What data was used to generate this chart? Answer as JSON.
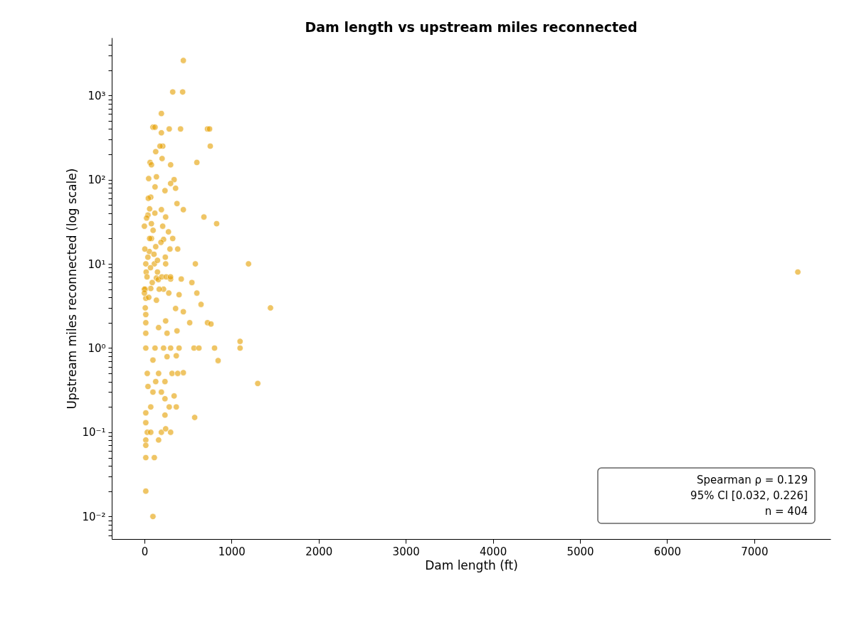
{
  "chart_data": {
    "type": "scatter",
    "title": "Dam length vs upstream miles reconnected",
    "xlabel": "Dam length (ft)",
    "ylabel": "Upstream miles reconnected (log scale)",
    "log": "y",
    "grid": false,
    "xlim": [
      -375,
      7875
    ],
    "xticks": [
      0,
      1000,
      2000,
      3000,
      4000,
      5000,
      6000,
      7000
    ],
    "ylim": [
      0.0054,
      4850
    ],
    "yticks": [
      {
        "value": 0.006,
        "label": null
      },
      {
        "value": 0.007,
        "label": null
      },
      {
        "value": 0.008,
        "label": null
      },
      {
        "value": 0.009,
        "label": null
      },
      {
        "value": 0.01,
        "label": "10⁻²"
      },
      {
        "value": 0.02,
        "label": null
      },
      {
        "value": 0.03,
        "label": null
      },
      {
        "value": 0.04,
        "label": null
      },
      {
        "value": 0.05,
        "label": null
      },
      {
        "value": 0.06,
        "label": null
      },
      {
        "value": 0.07,
        "label": null
      },
      {
        "value": 0.08,
        "label": null
      },
      {
        "value": 0.09,
        "label": null
      },
      {
        "value": 0.1,
        "label": "10⁻¹"
      },
      {
        "value": 0.2,
        "label": null
      },
      {
        "value": 0.3,
        "label": null
      },
      {
        "value": 0.4,
        "label": null
      },
      {
        "value": 0.5,
        "label": null
      },
      {
        "value": 0.6,
        "label": null
      },
      {
        "value": 0.7,
        "label": null
      },
      {
        "value": 0.8,
        "label": null
      },
      {
        "value": 0.9,
        "label": null
      },
      {
        "value": 1,
        "label": "10⁰"
      },
      {
        "value": 2,
        "label": null
      },
      {
        "value": 3,
        "label": null
      },
      {
        "value": 4,
        "label": null
      },
      {
        "value": 5,
        "label": null
      },
      {
        "value": 6,
        "label": null
      },
      {
        "value": 7,
        "label": null
      },
      {
        "value": 8,
        "label": null
      },
      {
        "value": 9,
        "label": null
      },
      {
        "value": 10,
        "label": "10¹"
      },
      {
        "value": 20,
        "label": null
      },
      {
        "value": 30,
        "label": null
      },
      {
        "value": 40,
        "label": null
      },
      {
        "value": 50,
        "label": null
      },
      {
        "value": 60,
        "label": null
      },
      {
        "value": 70,
        "label": null
      },
      {
        "value": 80,
        "label": null
      },
      {
        "value": 90,
        "label": null
      },
      {
        "value": 100,
        "label": "10²"
      },
      {
        "value": 200,
        "label": null
      },
      {
        "value": 300,
        "label": null
      },
      {
        "value": 400,
        "label": null
      },
      {
        "value": 500,
        "label": null
      },
      {
        "value": 600,
        "label": null
      },
      {
        "value": 700,
        "label": null
      },
      {
        "value": 800,
        "label": null
      },
      {
        "value": 900,
        "label": null
      },
      {
        "value": 1000,
        "label": "10³"
      },
      {
        "value": 2000,
        "label": null
      },
      {
        "value": 3000,
        "label": null
      },
      {
        "value": 4000,
        "label": null
      }
    ],
    "annotations": [
      "Spearman ρ = 0.129",
      "95% CI [0.032, 0.226]",
      "n = 404"
    ],
    "series": [
      {
        "color": "#e69f00",
        "x": [
          447,
          325,
          439,
          195,
          98,
          122,
          285,
          415,
          724,
          748,
          195,
          756,
          211,
          179,
          130,
          203,
          65,
          81,
          301,
          602,
          49,
          138,
          341,
          301,
          358,
          122,
          236,
          73,
          374,
          447,
          683,
          829,
          195,
          41,
          244,
          0,
          276,
          325,
          81,
          220,
          382,
          293,
          57,
          585,
          1195,
          244,
          16,
          114,
          423,
          545,
          301,
          138,
          602,
          398,
          650,
          1447,
          358,
          447,
          724,
          764,
          520,
          374,
          1098,
          1098,
          805,
          569,
          626,
          398,
          301,
          220,
          16,
          122,
          846,
          366,
          98,
          260,
          447,
          317,
          163,
          33,
          382,
          1301,
          130,
          236,
          41,
          98,
          195,
          341,
          236,
          73,
          285,
          366,
          16,
          236,
          577,
          16,
          33,
          73,
          195,
          301,
          244,
          163,
          16,
          16,
          16,
          114,
          16,
          98,
          16,
          16,
          16,
          163,
          260,
          244,
          16,
          138,
          73,
          220,
          7500,
          20,
          40,
          60,
          80,
          100,
          10,
          30,
          50,
          70,
          90,
          110,
          130,
          150,
          170,
          10,
          25,
          120,
          45,
          60,
          160,
          200,
          250,
          300,
          280,
          240,
          190,
          210,
          150,
          5,
          0,
          0
        ],
        "values": [
          2600,
          1100,
          1100,
          610,
          420,
          420,
          400,
          400,
          400,
          400,
          360,
          250,
          250,
          250,
          215,
          178,
          160,
          150,
          150,
          160,
          103,
          108,
          100,
          90,
          79,
          82,
          74,
          62,
          52,
          44,
          36,
          30,
          44,
          38,
          36,
          28,
          24,
          20,
          20,
          19.5,
          15,
          15,
          14,
          10,
          10,
          10,
          10,
          10,
          6.6,
          6,
          6.6,
          6.8,
          4.5,
          4.3,
          3.3,
          3,
          2.95,
          2.7,
          2,
          1.93,
          2,
          1.6,
          1.2,
          1,
          1,
          1,
          1,
          1,
          1,
          1,
          1,
          1,
          0.71,
          0.81,
          0.72,
          0.79,
          0.51,
          0.5,
          0.5,
          0.5,
          0.5,
          0.38,
          0.4,
          0.4,
          0.35,
          0.3,
          0.3,
          0.27,
          0.25,
          0.2,
          0.2,
          0.2,
          0.17,
          0.16,
          0.15,
          0.13,
          0.1,
          0.1,
          0.1,
          0.1,
          0.11,
          0.081,
          0.081,
          0.07,
          0.05,
          0.05,
          0.02,
          0.01,
          2,
          1.5,
          2.5,
          1.75,
          1.5,
          2.1,
          3.9,
          3.7,
          5.1,
          5,
          8,
          8,
          12,
          20,
          30,
          25,
          5,
          7,
          4,
          9,
          6,
          13,
          16,
          8,
          5,
          3,
          35,
          40,
          60,
          45,
          6.5,
          7,
          7,
          7,
          4.5,
          12,
          18,
          28,
          11,
          15,
          5,
          4.5
        ]
      }
    ]
  }
}
